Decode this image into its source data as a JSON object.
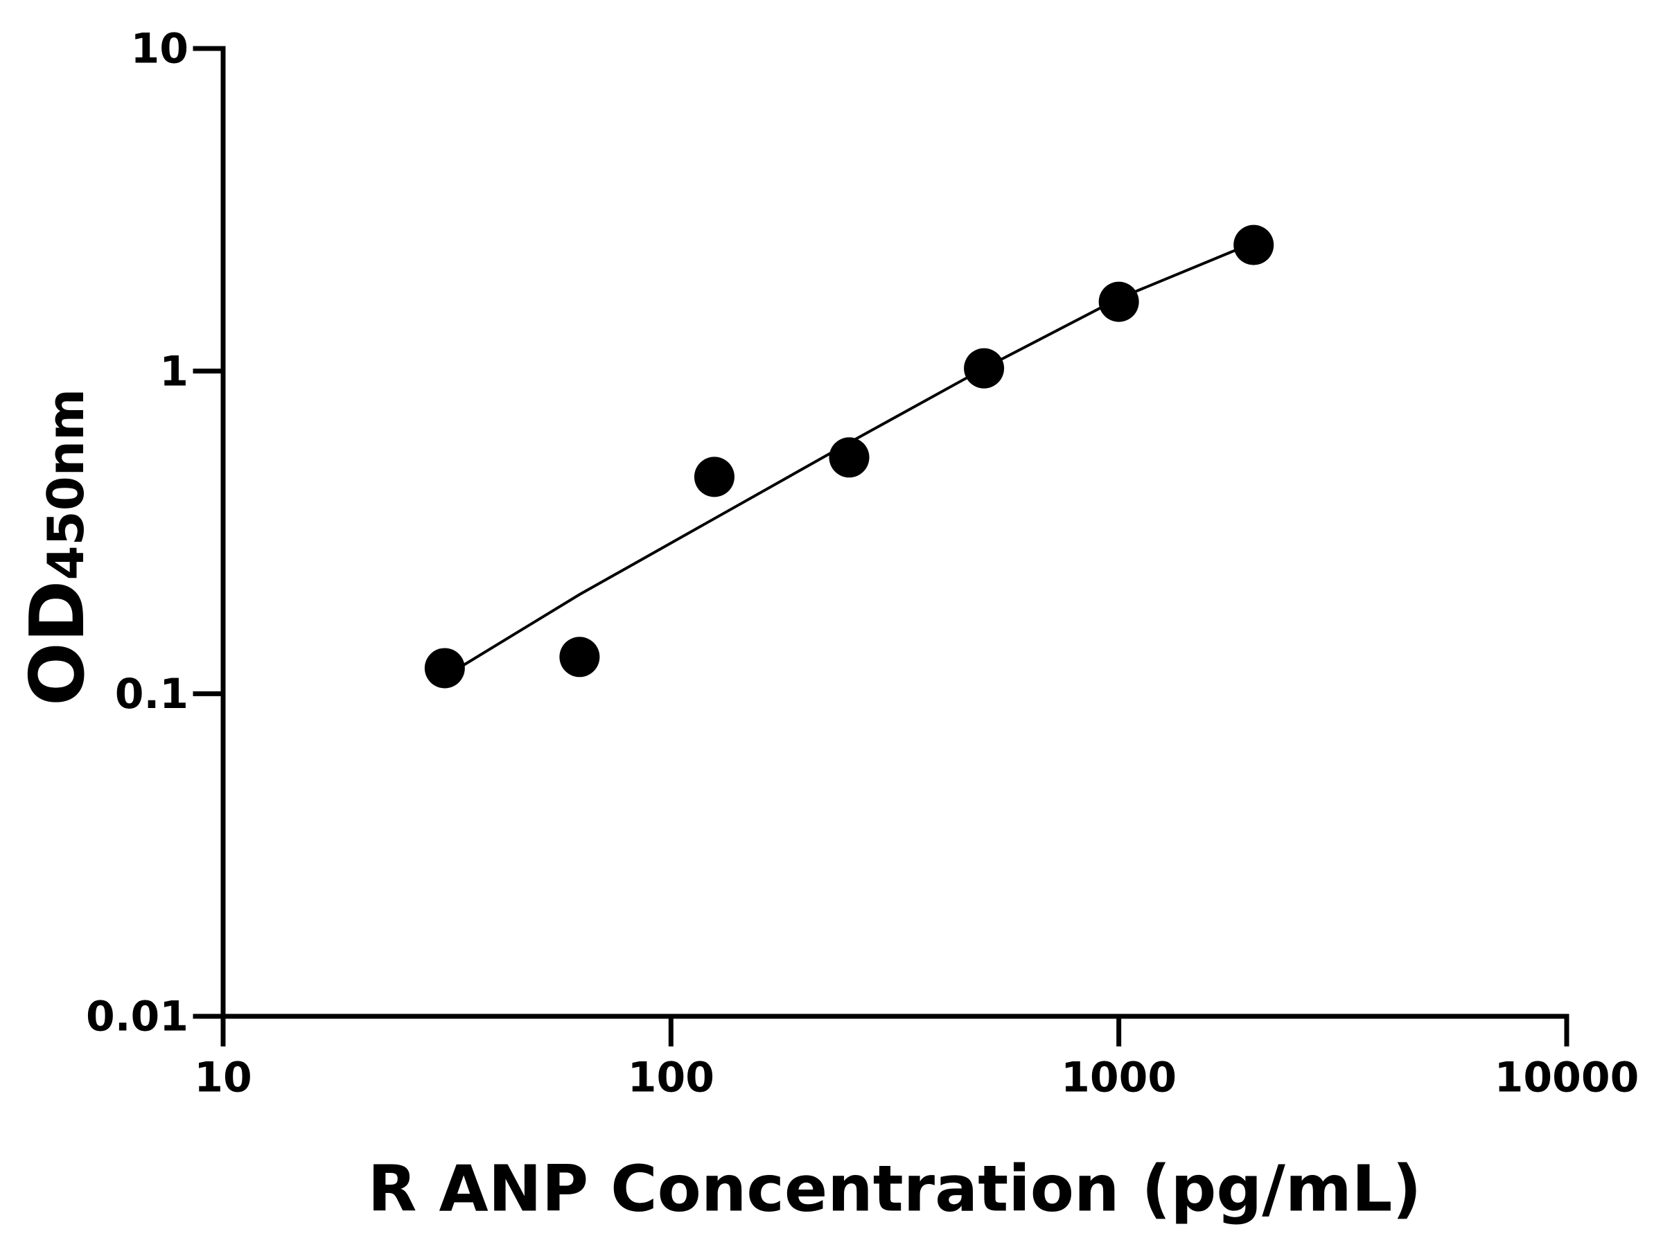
{
  "chart_data": {
    "type": "scatter",
    "xlabel": "R ANP Concentration (pg/mL)",
    "ylabel": {
      "main": "OD",
      "sub": "450nm"
    },
    "x": [
      31.25,
      62.5,
      125,
      250,
      500,
      1000,
      2000
    ],
    "values": [
      0.12,
      0.13,
      0.47,
      0.54,
      1.02,
      1.64,
      2.46
    ],
    "color": "#000000",
    "fit": {
      "x": [
        31.25,
        62.5,
        125,
        250,
        500,
        1000,
        2000
      ],
      "values": [
        0.113,
        0.203,
        0.349,
        0.6,
        1.02,
        1.68,
        2.5
      ]
    },
    "xlim": [
      10,
      10000
    ],
    "ylim": [
      0.01,
      10
    ],
    "xticks": [
      10,
      100,
      1000,
      10000
    ],
    "yticks": [
      0.01,
      0.1,
      1,
      10
    ],
    "xscale": "log",
    "yscale": "log",
    "grid": false
  }
}
